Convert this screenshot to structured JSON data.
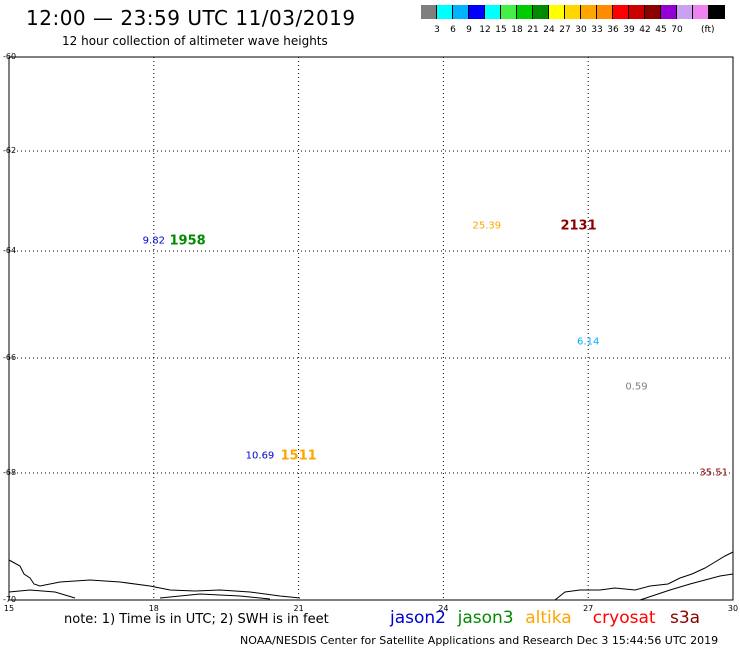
{
  "header": {
    "title": "12:00 — 23:59 UTC 11/03/2019",
    "subtitle": "12 hour collection of altimeter wave heights"
  },
  "scale": {
    "colors": [
      "#7f7f7f",
      "#00ffff",
      "#00b2ff",
      "#0000ff",
      "#00ffff",
      "#45ef45",
      "#00cd00",
      "#008b00",
      "#ffff00",
      "#ffd700",
      "#ffa500",
      "#ff8c00",
      "#ff0000",
      "#cd0000",
      "#8b0000",
      "#9400d3",
      "#c8a2f0",
      "#ee82ee",
      "#000000"
    ],
    "labels": [
      "3",
      "6",
      "9",
      "12",
      "15",
      "18",
      "21",
      "24",
      "27",
      "30",
      "33",
      "36",
      "39",
      "42",
      "45",
      "70"
    ],
    "unit": "(ft)"
  },
  "axes": {
    "lat_ticks": [
      "-60",
      "-62",
      "-64",
      "-66",
      "-68",
      "-70"
    ],
    "lon_ticks": [
      "15",
      "18",
      "21",
      "24",
      "27",
      "30"
    ]
  },
  "observations": [
    {
      "id": "obs-1",
      "value": "9.82",
      "color": "#0000cd",
      "lon": 18.0,
      "lat": -63.8
    },
    {
      "id": "time-1",
      "value": "1958",
      "color": "#008b00",
      "lon": 18.7,
      "lat": -63.8,
      "kind": "time"
    },
    {
      "id": "obs-2",
      "value": "25.39",
      "color": "#ffa500",
      "lon": 24.9,
      "lat": -63.5
    },
    {
      "id": "time-2",
      "value": "2131",
      "color": "#8b0000",
      "lon": 26.8,
      "lat": -63.5,
      "kind": "time"
    },
    {
      "id": "obs-3",
      "value": "6.14",
      "color": "#00b2ff",
      "lon": 27.0,
      "lat": -65.7
    },
    {
      "id": "obs-4",
      "value": "0.59",
      "color": "#7f7f7f",
      "lon": 28.0,
      "lat": -66.5
    },
    {
      "id": "obs-5",
      "value": "10.69",
      "color": "#0000cd",
      "lon": 20.2,
      "lat": -67.7
    },
    {
      "id": "time-3",
      "value": "1511",
      "color": "#ffa500",
      "lon": 21.0,
      "lat": -67.7,
      "kind": "time"
    },
    {
      "id": "obs-6",
      "value": "35.51",
      "color": "#8b0000",
      "lon": 29.6,
      "lat": -68.0
    }
  ],
  "footer": {
    "note": "note: 1) Time is in UTC; 2) SWH is in feet",
    "legend": [
      {
        "name": "jason2",
        "color": "#0000cd"
      },
      {
        "name": "jason3",
        "color": "#008b00"
      },
      {
        "name": "altika",
        "color": "#ffa500"
      },
      {
        "name": "cryosat",
        "color": "#ff0000"
      },
      {
        "name": "s3a",
        "color": "#8b0000"
      }
    ],
    "credit": "NOAA/NESDIS Center for Satellite Applications and Research     Dec  3 15:44:56 UTC 2019"
  }
}
